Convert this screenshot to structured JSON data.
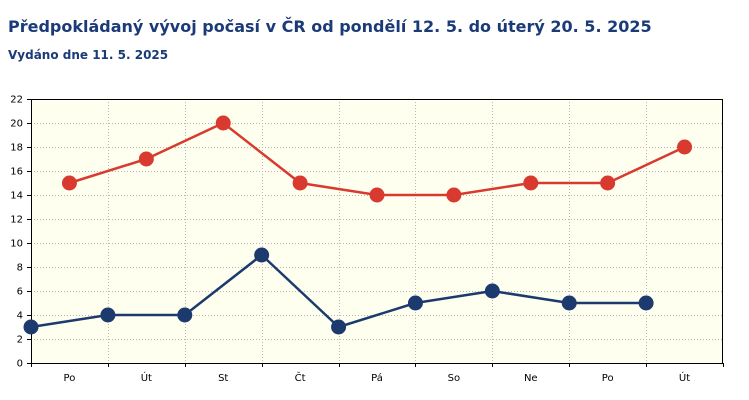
{
  "header": {
    "title": "Předpokládaný vývoj počasí v ČR od pondělí 12. 5. do úterý 20. 5. 2025",
    "subtitle": "Vydáno dne 11. 5. 2025"
  },
  "chart_data": {
    "type": "line",
    "title": "Předpokládaný vývoj počasí v ČR od pondělí 12. 5. do úterý 20. 5. 2025",
    "subtitle": "Vydáno dne 11. 5. 2025",
    "xlabel": "",
    "ylabel": "",
    "categories": [
      "Po",
      "Út",
      "St",
      "Čt",
      "Pá",
      "So",
      "Ne",
      "Po",
      "Út"
    ],
    "ylim": [
      0,
      22
    ],
    "yticks": [
      0,
      2,
      4,
      6,
      8,
      10,
      12,
      14,
      16,
      18,
      20,
      22
    ],
    "grid": true,
    "legend": "none",
    "series": [
      {
        "color": "#d93a30",
        "points": [
          {
            "x": 0.5,
            "y": 15
          },
          {
            "x": 1.5,
            "y": 17
          },
          {
            "x": 2.5,
            "y": 20
          },
          {
            "x": 3.5,
            "y": 15
          },
          {
            "x": 4.5,
            "y": 14
          },
          {
            "x": 5.5,
            "y": 14
          },
          {
            "x": 6.5,
            "y": 15
          },
          {
            "x": 7.5,
            "y": 15
          },
          {
            "x": 8.5,
            "y": 18
          }
        ]
      },
      {
        "color": "#1c3a6e",
        "points": [
          {
            "x": 0,
            "y": 3
          },
          {
            "x": 1,
            "y": 4
          },
          {
            "x": 2,
            "y": 4
          },
          {
            "x": 3,
            "y": 9
          },
          {
            "x": 4,
            "y": 3
          },
          {
            "x": 5,
            "y": 5
          },
          {
            "x": 6,
            "y": 6
          },
          {
            "x": 7,
            "y": 5
          },
          {
            "x": 8,
            "y": 5
          }
        ]
      }
    ],
    "colors": {
      "plot_background": "#fffff0",
      "grid": "#b8b8b8",
      "axis": "#000000"
    }
  }
}
